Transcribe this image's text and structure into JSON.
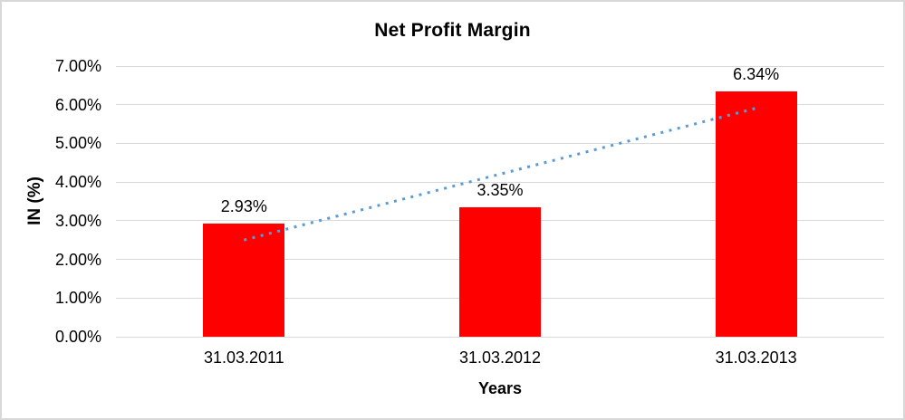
{
  "window": {
    "background_color": "#ffffff",
    "border_color": "#d8d8d8"
  },
  "chart_data": {
    "type": "bar",
    "title": "Net Profit Margin",
    "xlabel": "Years",
    "ylabel": "IN (%)",
    "categories": [
      "31.03.2011",
      "31.03.2012",
      "31.03.2013"
    ],
    "values": [
      2.93,
      3.35,
      6.34
    ],
    "data_labels": [
      "2.93%",
      "3.35%",
      "6.34%"
    ],
    "bar_color": "#ff0000",
    "ylim": [
      0,
      7
    ],
    "ytick_step": 1,
    "ytick_labels": [
      "0.00%",
      "1.00%",
      "2.00%",
      "3.00%",
      "4.00%",
      "5.00%",
      "6.00%",
      "7.00%"
    ],
    "grid": true,
    "gridline_color": "#d9d9d9",
    "legend": "none",
    "trendline": {
      "type": "linear",
      "style": "dotted",
      "color": "#5b9bd5",
      "start_value": 2.5,
      "end_value": 5.91
    }
  }
}
